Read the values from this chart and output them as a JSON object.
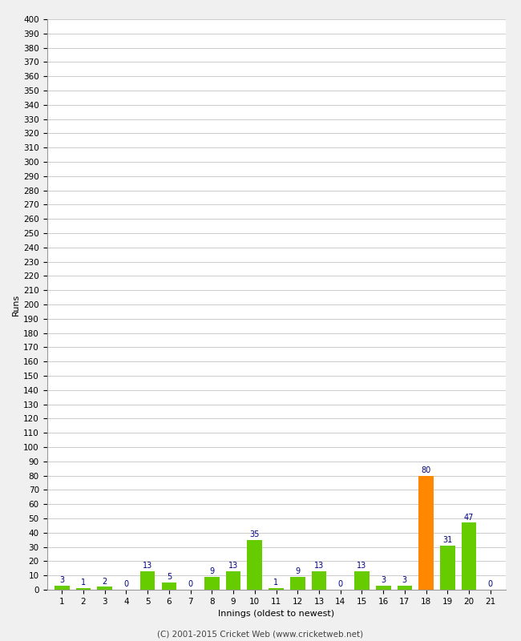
{
  "xlabel": "Innings (oldest to newest)",
  "ylabel": "Runs",
  "categories": [
    "1",
    "2",
    "3",
    "4",
    "5",
    "6",
    "7",
    "8",
    "9",
    "10",
    "11",
    "12",
    "13",
    "14",
    "15",
    "16",
    "17",
    "18",
    "19",
    "20",
    "21"
  ],
  "values": [
    3,
    1,
    2,
    0,
    13,
    5,
    0,
    9,
    13,
    35,
    1,
    9,
    13,
    0,
    13,
    3,
    3,
    80,
    31,
    47,
    0
  ],
  "bar_colors": [
    "#66cc00",
    "#66cc00",
    "#66cc00",
    "#66cc00",
    "#66cc00",
    "#66cc00",
    "#66cc00",
    "#66cc00",
    "#66cc00",
    "#66cc00",
    "#66cc00",
    "#66cc00",
    "#66cc00",
    "#66cc00",
    "#66cc00",
    "#66cc00",
    "#66cc00",
    "#ff8800",
    "#66cc00",
    "#66cc00",
    "#66cc00"
  ],
  "ylim": [
    0,
    400
  ],
  "ytick_step": 10,
  "background_color": "#f0f0f0",
  "plot_bg_color": "#ffffff",
  "grid_color": "#cccccc",
  "label_color": "#000080",
  "footer": "(C) 2001-2015 Cricket Web (www.cricketweb.net)"
}
